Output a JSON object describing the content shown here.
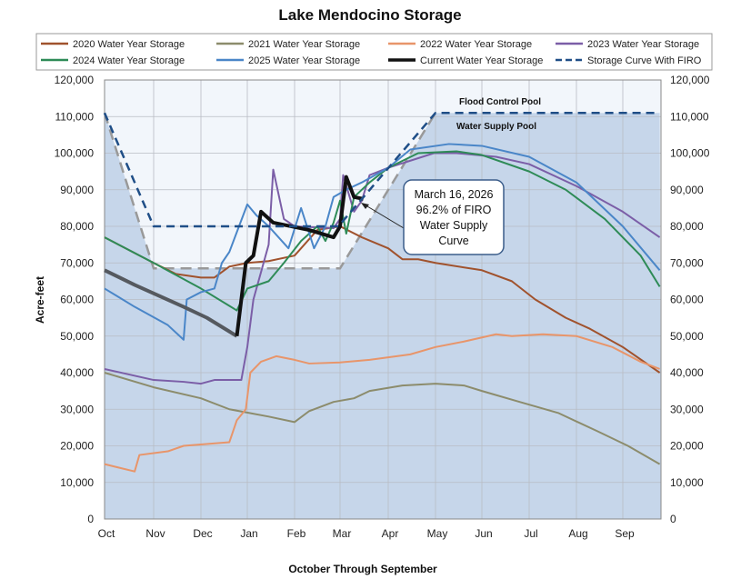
{
  "chart_data": {
    "type": "line",
    "title": "Lake Mendocino Storage",
    "xlabel": "October Through September",
    "ylabel": "Acre-feet",
    "ylim": [
      0,
      120000
    ],
    "yticks": [
      "0",
      "10,000",
      "20,000",
      "30,000",
      "40,000",
      "50,000",
      "60,000",
      "70,000",
      "80,000",
      "90,000",
      "100,000",
      "110,000",
      "120,000"
    ],
    "xticks": [
      "Oct",
      "Nov",
      "Dec",
      "Jan",
      "Feb",
      "Mar",
      "Apr",
      "May",
      "Jun",
      "Jul",
      "Aug",
      "Sep"
    ],
    "grid": true,
    "legend": "top",
    "annotations": {
      "flood": "Flood Control Pool",
      "supply": "Water Supply Pool",
      "callout": [
        "March 16, 2026",
        "96.2% of FIRO",
        "Water Supply",
        "Curve"
      ]
    },
    "colors": {
      "shade": "#c6d6ea",
      "light": "#f2f6fb",
      "firo": "#1f4e87",
      "supply_curve": "#999999"
    },
    "series": [
      {
        "name": "2020 Water Year Storage",
        "color": "#a0522d",
        "width": 2,
        "points": [
          [
            "10-01",
            77000
          ],
          [
            "11-01",
            70000
          ],
          [
            "11-15",
            67000
          ],
          [
            "12-01",
            66000
          ],
          [
            "12-10",
            66000
          ],
          [
            "12-20",
            69000
          ],
          [
            "01-01",
            70000
          ],
          [
            "01-15",
            70500
          ],
          [
            "02-01",
            72000
          ],
          [
            "02-15",
            79000
          ],
          [
            "03-01",
            80000
          ],
          [
            "03-15",
            77000
          ],
          [
            "04-01",
            74000
          ],
          [
            "04-10",
            71000
          ],
          [
            "04-20",
            71000
          ],
          [
            "05-01",
            70000
          ],
          [
            "06-01",
            68000
          ],
          [
            "06-20",
            65000
          ],
          [
            "07-05",
            60000
          ],
          [
            "07-25",
            55000
          ],
          [
            "08-10",
            52000
          ],
          [
            "09-01",
            47000
          ],
          [
            "09-30",
            40000
          ]
        ]
      },
      {
        "name": "2021 Water Year Storage",
        "color": "#8c8c6c",
        "width": 2,
        "points": [
          [
            "10-01",
            40000
          ],
          [
            "11-01",
            36000
          ],
          [
            "12-01",
            33000
          ],
          [
            "12-20",
            30000
          ],
          [
            "01-15",
            28000
          ],
          [
            "02-01",
            26500
          ],
          [
            "02-10",
            29500
          ],
          [
            "02-25",
            32000
          ],
          [
            "03-10",
            33000
          ],
          [
            "03-20",
            35000
          ],
          [
            "04-10",
            36500
          ],
          [
            "05-01",
            37000
          ],
          [
            "05-20",
            36500
          ],
          [
            "06-01",
            35000
          ],
          [
            "06-25",
            32000
          ],
          [
            "07-20",
            29000
          ],
          [
            "08-15",
            24000
          ],
          [
            "09-05",
            20000
          ],
          [
            "09-30",
            15000
          ]
        ]
      },
      {
        "name": "2022 Water Year Storage",
        "color": "#e8956a",
        "width": 2,
        "points": [
          [
            "10-01",
            15000
          ],
          [
            "10-20",
            13000
          ],
          [
            "10-23",
            17500
          ],
          [
            "11-10",
            18500
          ],
          [
            "11-20",
            20000
          ],
          [
            "12-20",
            21000
          ],
          [
            "12-25",
            27000
          ],
          [
            "12-31",
            30000
          ],
          [
            "01-03",
            40000
          ],
          [
            "01-10",
            43000
          ],
          [
            "01-20",
            44500
          ],
          [
            "02-01",
            43500
          ],
          [
            "02-10",
            42500
          ],
          [
            "03-01",
            42800
          ],
          [
            "03-20",
            43500
          ],
          [
            "04-15",
            45000
          ],
          [
            "05-01",
            47000
          ],
          [
            "05-20",
            48500
          ],
          [
            "06-10",
            50500
          ],
          [
            "06-20",
            50000
          ],
          [
            "07-10",
            50500
          ],
          [
            "08-01",
            50000
          ],
          [
            "08-25",
            47000
          ],
          [
            "09-15",
            43000
          ],
          [
            "09-30",
            41000
          ]
        ]
      },
      {
        "name": "2023 Water Year Storage",
        "color": "#7b5ea7",
        "width": 2,
        "points": [
          [
            "10-01",
            41000
          ],
          [
            "11-01",
            38000
          ],
          [
            "11-20",
            37500
          ],
          [
            "12-01",
            37000
          ],
          [
            "12-10",
            38000
          ],
          [
            "12-28",
            38000
          ],
          [
            "01-01",
            47000
          ],
          [
            "01-05",
            60000
          ],
          [
            "01-15",
            75000
          ],
          [
            "01-18",
            95500
          ],
          [
            "01-25",
            82000
          ],
          [
            "02-01",
            80000
          ],
          [
            "02-25",
            79500
          ],
          [
            "03-01",
            82000
          ],
          [
            "03-03",
            94000
          ],
          [
            "03-10",
            84000
          ],
          [
            "03-15",
            87000
          ],
          [
            "03-20",
            94000
          ],
          [
            "04-01",
            96000
          ],
          [
            "04-30",
            100000
          ],
          [
            "05-15",
            100000
          ],
          [
            "06-10",
            99000
          ],
          [
            "07-01",
            97000
          ],
          [
            "08-01",
            91000
          ],
          [
            "09-01",
            84000
          ],
          [
            "09-30",
            77000
          ]
        ]
      },
      {
        "name": "2024 Water Year Storage",
        "color": "#2e8b57",
        "width": 2,
        "points": [
          [
            "10-01",
            77000
          ],
          [
            "11-01",
            70000
          ],
          [
            "12-01",
            63000
          ],
          [
            "12-25",
            57000
          ],
          [
            "01-01",
            63000
          ],
          [
            "01-15",
            65000
          ],
          [
            "01-25",
            70000
          ],
          [
            "02-05",
            76000
          ],
          [
            "02-15",
            80000
          ],
          [
            "02-20",
            76000
          ],
          [
            "02-25",
            81000
          ],
          [
            "03-01",
            87000
          ],
          [
            "03-05",
            78000
          ],
          [
            "03-10",
            88000
          ],
          [
            "03-20",
            92000
          ],
          [
            "04-01",
            96000
          ],
          [
            "04-20",
            100000
          ],
          [
            "05-15",
            100500
          ],
          [
            "06-01",
            99500
          ],
          [
            "07-01",
            95000
          ],
          [
            "07-25",
            90000
          ],
          [
            "08-20",
            82000
          ],
          [
            "09-15",
            72000
          ],
          [
            "09-30",
            63500
          ]
        ]
      },
      {
        "name": "2025 Water Year Storage",
        "color": "#4a86c8",
        "width": 2,
        "points": [
          [
            "10-01",
            63000
          ],
          [
            "10-20",
            58000
          ],
          [
            "11-10",
            53000
          ],
          [
            "11-20",
            49000
          ],
          [
            "11-22",
            60000
          ],
          [
            "12-01",
            62000
          ],
          [
            "12-10",
            63000
          ],
          [
            "12-15",
            70000
          ],
          [
            "12-20",
            73000
          ],
          [
            "01-01",
            86000
          ],
          [
            "01-07",
            83000
          ],
          [
            "01-15",
            80000
          ],
          [
            "01-28",
            74000
          ],
          [
            "02-05",
            85000
          ],
          [
            "02-13",
            74000
          ],
          [
            "02-20",
            80000
          ],
          [
            "02-25",
            88000
          ],
          [
            "03-05",
            90000
          ],
          [
            "03-15",
            92000
          ],
          [
            "04-01",
            96000
          ],
          [
            "04-15",
            101000
          ],
          [
            "05-10",
            102500
          ],
          [
            "06-01",
            102000
          ],
          [
            "07-01",
            99000
          ],
          [
            "08-01",
            92000
          ],
          [
            "09-01",
            80000
          ],
          [
            "09-30",
            68000
          ]
        ]
      },
      {
        "name": "Current Water Year Storage",
        "color": "#111111",
        "prior_color": "#55595f",
        "width": 4,
        "points": [
          [
            "10-01",
            68000
          ],
          [
            "10-20",
            64000
          ],
          [
            "11-20",
            58000
          ],
          [
            "12-05",
            55000
          ],
          [
            "12-25",
            50000
          ],
          [
            "12-31",
            70000
          ],
          [
            "01-05",
            72000
          ],
          [
            "01-10",
            84000
          ],
          [
            "01-18",
            81000
          ],
          [
            "02-10",
            79000
          ],
          [
            "02-25",
            77000
          ],
          [
            "03-01",
            80000
          ],
          [
            "03-05",
            93500
          ],
          [
            "03-10",
            88000
          ],
          [
            "03-16",
            87500
          ]
        ]
      },
      {
        "name": "Storage Curve With FIRO",
        "color": "#1f4e87",
        "width": 2.5,
        "dash": true,
        "points": [
          [
            "10-01",
            111000
          ],
          [
            "11-01",
            80000
          ],
          [
            "02-28",
            80000
          ],
          [
            "05-01",
            111000
          ],
          [
            "09-30",
            111000
          ]
        ]
      }
    ],
    "water_supply_curve": [
      [
        "10-01",
        111000
      ],
      [
        "11-01",
        68500
      ],
      [
        "03-01",
        68500
      ],
      [
        "05-01",
        111000
      ],
      [
        "09-30",
        111000
      ]
    ]
  }
}
